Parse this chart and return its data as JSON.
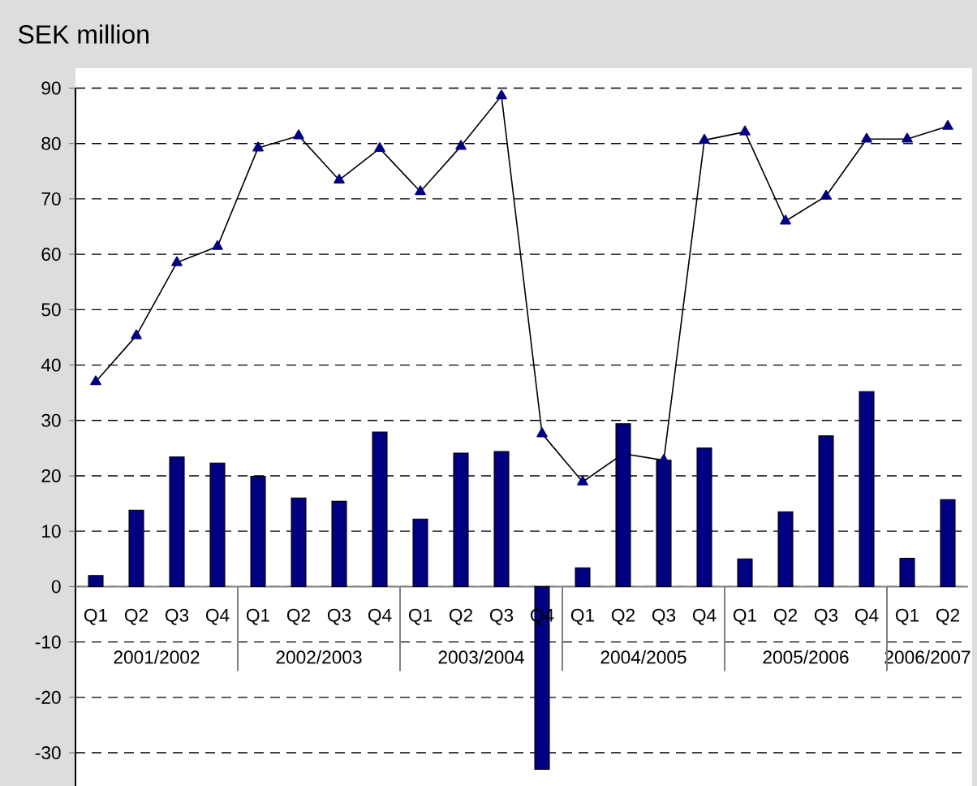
{
  "chart_data": {
    "type": "bar",
    "title": "SEK million",
    "categories": [
      "Q1",
      "Q2",
      "Q3",
      "Q4",
      "Q1",
      "Q2",
      "Q3",
      "Q4",
      "Q1",
      "Q2",
      "Q3",
      "Q4",
      "Q1",
      "Q2",
      "Q3",
      "Q4",
      "Q1",
      "Q2",
      "Q3",
      "Q4",
      "Q1",
      "Q2"
    ],
    "series": [
      {
        "color": "#000080",
        "values": [
          2,
          13.8,
          23.4,
          22.3,
          19.9,
          16.0,
          15.4,
          27.9,
          12.2,
          24.1,
          24.4,
          -33,
          3.4,
          29.4,
          22.8,
          25.0,
          5.0,
          13.5,
          27.2,
          35.2,
          5.1,
          15.7
        ]
      },
      {
        "type": "line",
        "color": "#000080",
        "values": [
          37.0,
          45.3,
          58.5,
          61.4,
          79.2,
          81.4,
          73.4,
          79.1,
          71.3,
          79.5,
          88.6,
          27.6,
          18.9,
          24.0,
          22.8,
          80.6,
          82.1,
          66.0,
          70.5,
          80.8,
          80.8,
          83.1
        ]
      }
    ],
    "annotations": [
      "2001/2002",
      "2002/2003",
      "2003/2004",
      "2004/2005",
      "2005/2006",
      "2006/2007"
    ],
    "ylim": [
      -36,
      90
    ],
    "yticks": [
      -30,
      -20,
      -10,
      0,
      10,
      20,
      30,
      40,
      50,
      60,
      70,
      80,
      90
    ],
    "grid": "y",
    "marker": "triangle",
    "line_style": "solid"
  }
}
